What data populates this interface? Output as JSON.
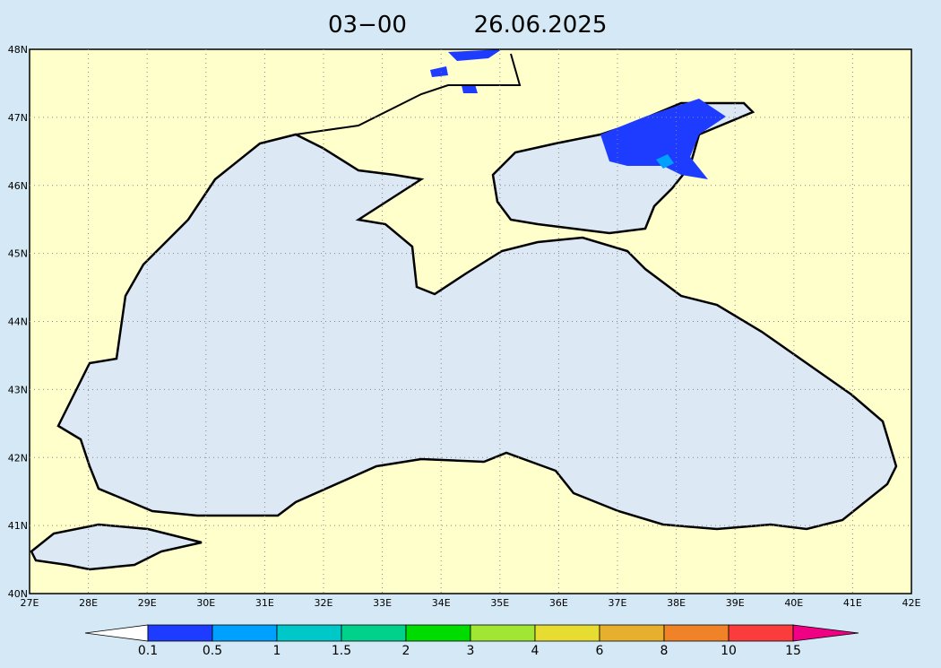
{
  "title": {
    "time": "03−00",
    "date": "26.06.2025"
  },
  "lat_labels": [
    "40N",
    "41N",
    "42N",
    "43N",
    "44N",
    "45N",
    "46N",
    "47N",
    "48N"
  ],
  "lon_labels": [
    "27E",
    "28E",
    "29E",
    "30E",
    "31E",
    "32E",
    "33E",
    "34E",
    "35E",
    "36E",
    "37E",
    "38E",
    "39E",
    "40E",
    "41E",
    "42E"
  ],
  "legend": {
    "levels": [
      "0.1",
      "0.5",
      "1",
      "1.5",
      "2",
      "3",
      "4",
      "6",
      "8",
      "10",
      "15"
    ],
    "colors": [
      "#ffffff",
      "#1e3cff",
      "#00a0ff",
      "#00c8c8",
      "#00d28c",
      "#00dc00",
      "#a0e632",
      "#e6dc32",
      "#e6af2d",
      "#f08228",
      "#fa3c3c",
      "#f00082"
    ]
  }
}
